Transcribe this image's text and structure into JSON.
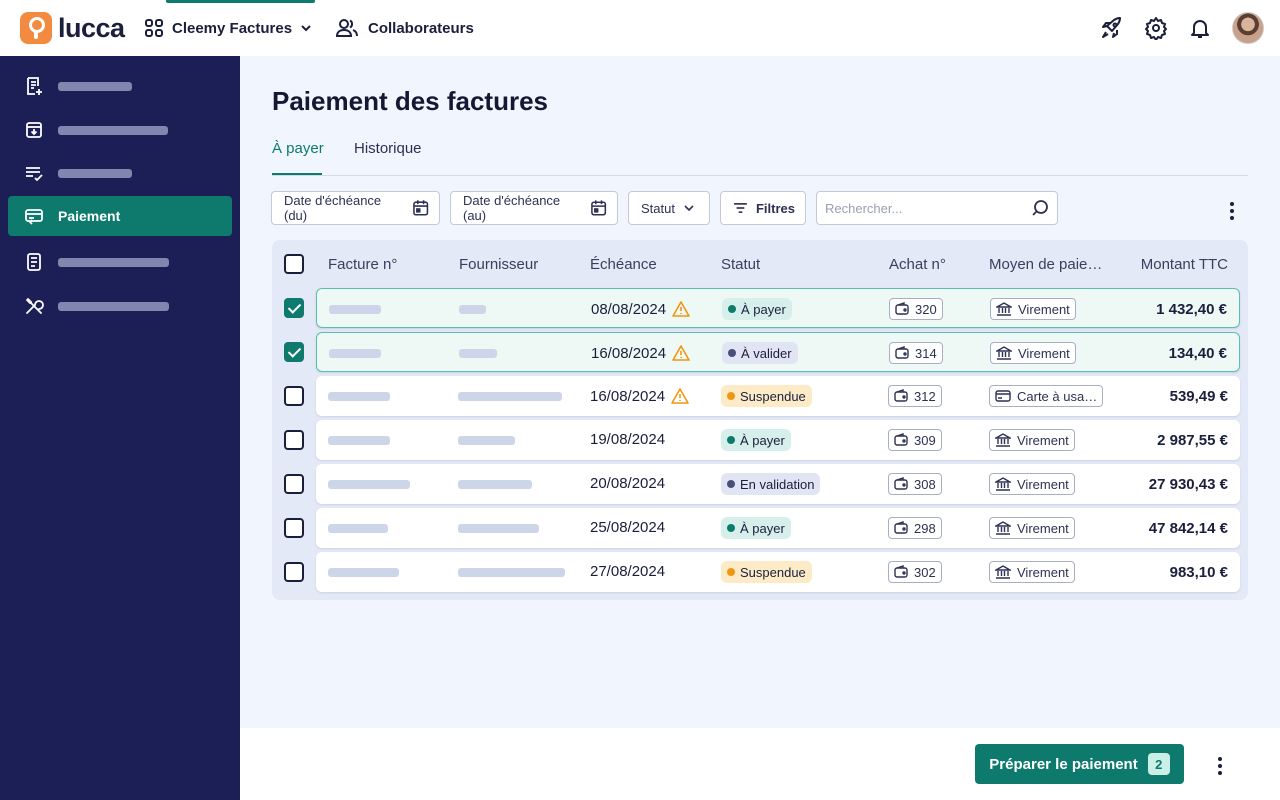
{
  "app": {
    "brand": "lucca",
    "product": "Cleemy Factures",
    "collaborators": "Collaborateurs"
  },
  "sidebar": {
    "active_label": "Paiement",
    "items": [
      {
        "icon": "invoice-add-icon"
      },
      {
        "icon": "inbox-download-icon"
      },
      {
        "icon": "list-check-icon"
      },
      {
        "icon": "payment-icon",
        "label": "Paiement"
      },
      {
        "icon": "document-icon"
      },
      {
        "icon": "tools-icon"
      }
    ]
  },
  "page": {
    "title": "Paiement des factures",
    "tabs": [
      "À payer",
      "Historique"
    ],
    "active_tab": "À payer"
  },
  "filters": {
    "date_from": "Date d'échéance (du)",
    "date_to": "Date d'échéance (au)",
    "status": "Statut",
    "more": "Filtres",
    "search_placeholder": "Rechercher..."
  },
  "table": {
    "columns": [
      "Facture n°",
      "Fournisseur",
      "Échéance",
      "Statut",
      "Achat n°",
      "Moyen de paie…",
      "Montant TTC"
    ],
    "rows": [
      {
        "selected": true,
        "due": "08/08/2024",
        "warning": true,
        "status": "À payer",
        "status_color": "#0e7a6e",
        "purchase": "320",
        "method": "Virement",
        "method_icon": "bank-icon",
        "amount": "1 432,40 €"
      },
      {
        "selected": true,
        "due": "16/08/2024",
        "warning": true,
        "status": "À valider",
        "status_color": "#4a4f7a",
        "purchase": "314",
        "method": "Virement",
        "method_icon": "bank-icon",
        "amount": "134,40 €"
      },
      {
        "selected": false,
        "due": "16/08/2024",
        "warning": true,
        "status": "Suspendue",
        "status_color": "#f0960e",
        "purchase": "312",
        "method": "Carte à usa…",
        "method_icon": "card-icon",
        "amount": "539,49 €"
      },
      {
        "selected": false,
        "due": "19/08/2024",
        "warning": false,
        "status": "À payer",
        "status_color": "#0e7a6e",
        "purchase": "309",
        "method": "Virement",
        "method_icon": "bank-icon",
        "amount": "2 987,55 €"
      },
      {
        "selected": false,
        "due": "20/08/2024",
        "warning": false,
        "status": "En validation",
        "status_color": "#4a4f7a",
        "purchase": "308",
        "method": "Virement",
        "method_icon": "bank-icon",
        "amount": "27 930,43 €"
      },
      {
        "selected": false,
        "due": "25/08/2024",
        "warning": false,
        "status": "À payer",
        "status_color": "#0e7a6e",
        "purchase": "298",
        "method": "Virement",
        "method_icon": "bank-icon",
        "amount": "47 842,14 €"
      },
      {
        "selected": false,
        "due": "27/08/2024",
        "warning": false,
        "status": "Suspendue",
        "status_color": "#f0960e",
        "purchase": "302",
        "method": "Virement",
        "method_icon": "bank-icon",
        "amount": "983,10 €"
      }
    ]
  },
  "footer": {
    "primary_label": "Préparer le paiement",
    "selected_count": "2"
  },
  "colors": {
    "accent": "#0e7a6e",
    "sidebar": "#1c1f56",
    "warning": "#f0960e"
  }
}
